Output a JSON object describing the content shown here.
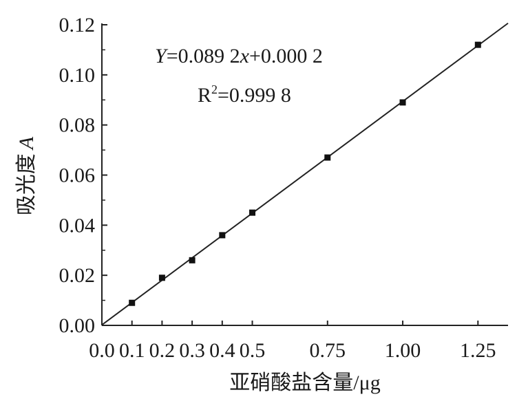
{
  "chart_data": {
    "type": "scatter",
    "xlabel": "亚硝酸盐含量/μg",
    "ylabel_main": "吸光度",
    "ylabel_var": "A",
    "x_ticks": [
      "0.0",
      "0.1",
      "0.2",
      "0.3",
      "0.4",
      "0.5",
      "0.75",
      "1.00",
      "1.25"
    ],
    "x_tick_values": [
      0,
      0.1,
      0.2,
      0.3,
      0.4,
      0.5,
      0.75,
      1.0,
      1.25
    ],
    "y_ticks": [
      "0.00",
      "0.02",
      "0.04",
      "0.06",
      "0.08",
      "0.10",
      "0.12"
    ],
    "y_tick_values": [
      0,
      0.02,
      0.04,
      0.06,
      0.08,
      0.1,
      0.12
    ],
    "xlim": [
      0,
      1.35
    ],
    "ylim": [
      0,
      0.12
    ],
    "grid": false,
    "points": [
      {
        "x": 0.1,
        "y": 0.009
      },
      {
        "x": 0.2,
        "y": 0.019
      },
      {
        "x": 0.3,
        "y": 0.026
      },
      {
        "x": 0.4,
        "y": 0.036
      },
      {
        "x": 0.5,
        "y": 0.045
      },
      {
        "x": 0.75,
        "y": 0.067
      },
      {
        "x": 1.0,
        "y": 0.089
      },
      {
        "x": 1.25,
        "y": 0.112
      }
    ],
    "fit": {
      "slope": 0.0892,
      "intercept": 0.0002,
      "x_range": [
        0,
        1.35
      ]
    },
    "equation": {
      "y_var": "Y",
      "eq_part1": "=0.089 2",
      "x_var": "x",
      "eq_part2": "+0.000 2"
    },
    "r2": {
      "base": "R",
      "exp": "2",
      "value": "=0.999 8"
    }
  }
}
